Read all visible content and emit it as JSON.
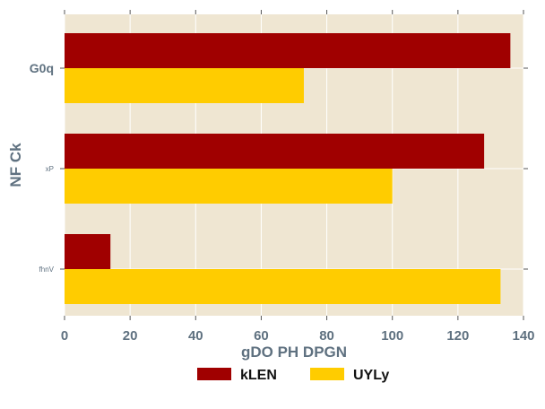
{
  "chart_data": {
    "type": "bar",
    "orientation": "horizontal",
    "categories": [
      "G0q",
      "xP",
      "fhnV"
    ],
    "series": [
      {
        "name": "kLEN",
        "color": "#a00000",
        "values": [
          136,
          128,
          14
        ]
      },
      {
        "name": "UYLy",
        "color": "#ffcc00",
        "values": [
          73,
          100,
          133
        ]
      }
    ],
    "xlabel": "gDO PH DPGN",
    "ylabel": "NF Ck",
    "xlim": [
      0,
      140
    ],
    "xticks": [
      0,
      20,
      40,
      60,
      80,
      100,
      120,
      140
    ],
    "grid": true,
    "legend_position": "bottom-center",
    "plot_background": "#efe6d2"
  }
}
